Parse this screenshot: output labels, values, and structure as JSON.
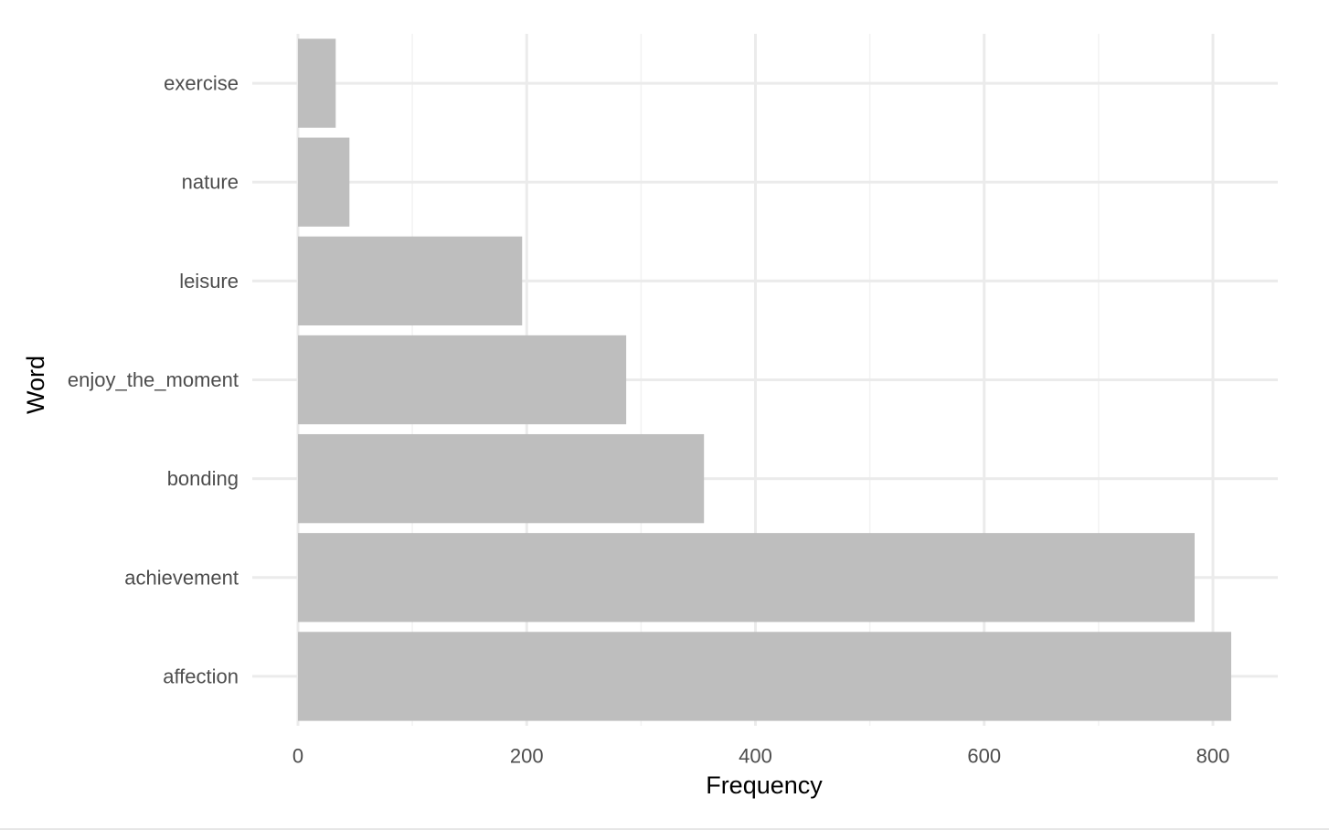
{
  "chart_data": {
    "type": "bar",
    "orientation": "horizontal",
    "categories": [
      "affection",
      "achievement",
      "bonding",
      "enjoy_the_moment",
      "leisure",
      "nature",
      "exercise"
    ],
    "values": [
      816,
      784,
      355,
      287,
      196,
      45,
      33
    ],
    "xlabel": "Frequency",
    "ylabel": "Word",
    "xlim": [
      0,
      858
    ],
    "xticks": [
      0,
      200,
      400,
      600,
      800
    ],
    "grid": true,
    "bar_color": "#bebebe",
    "grid_color": "#ebebeb",
    "theme": "minimal"
  }
}
